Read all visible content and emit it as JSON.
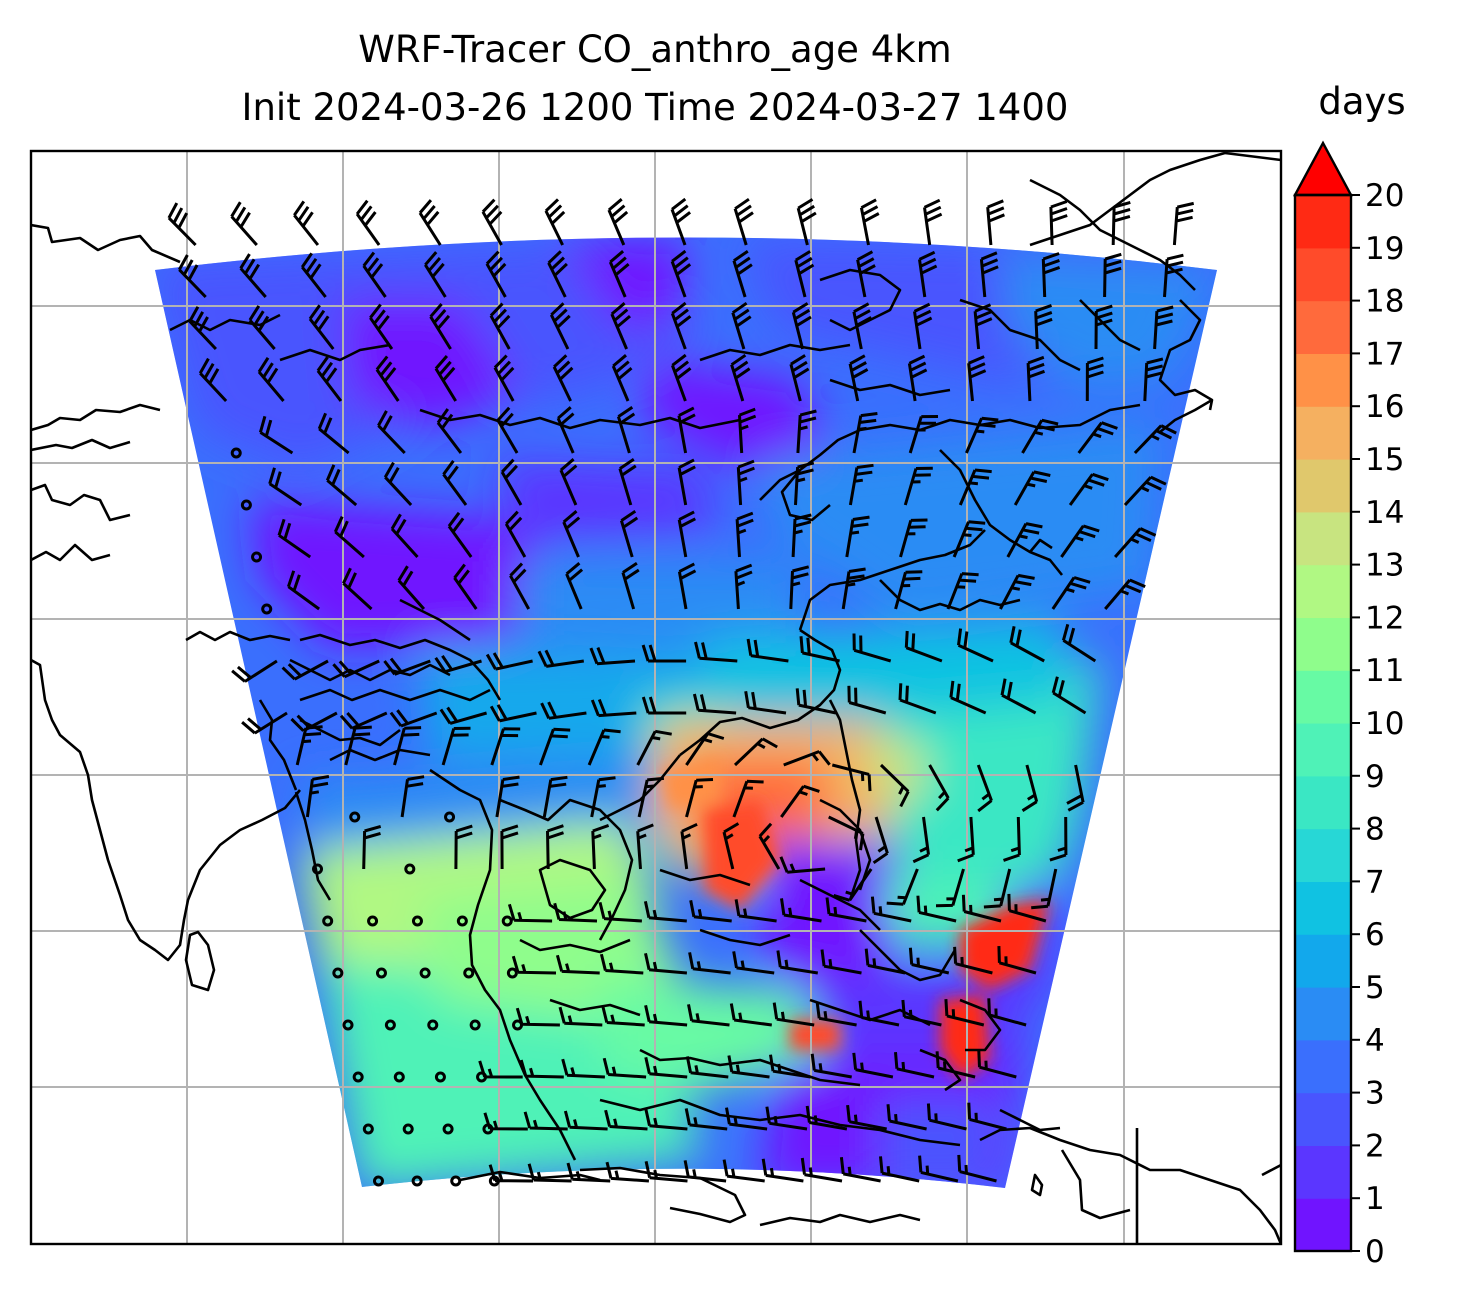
{
  "title": {
    "line1": "WRF-Tracer CO_anthro_age 4km",
    "line2": "Init 2024-03-26 1200 Time 2024-03-27 1400"
  },
  "colorbar": {
    "unit": "days",
    "ticks": [
      "0",
      "1",
      "2",
      "3",
      "4",
      "5",
      "6",
      "7",
      "8",
      "9",
      "10",
      "11",
      "12",
      "13",
      "14",
      "15",
      "16",
      "17",
      "18",
      "19",
      "20"
    ],
    "extend": "max",
    "colors": [
      "#7014ff",
      "#5b36ff",
      "#4955fe",
      "#3a6ffd",
      "#2a8cf4",
      "#12a8ec",
      "#10c2e2",
      "#27d7d6",
      "#3ae7c4",
      "#4ff2b7",
      "#67faa4",
      "#8ffd8c",
      "#b0f883",
      "#c8e480",
      "#e0c86c",
      "#f5b060",
      "#ff9147",
      "#ff6a3c",
      "#ff4b2a",
      "#ff2a14",
      "#ff0a00"
    ],
    "extend_color": "#ff0000"
  },
  "map": {
    "colors": {
      "frame": "#000000",
      "grid": "#b3b3b3",
      "coast": "#000000",
      "barb": "#000000"
    },
    "legend": "none"
  }
}
